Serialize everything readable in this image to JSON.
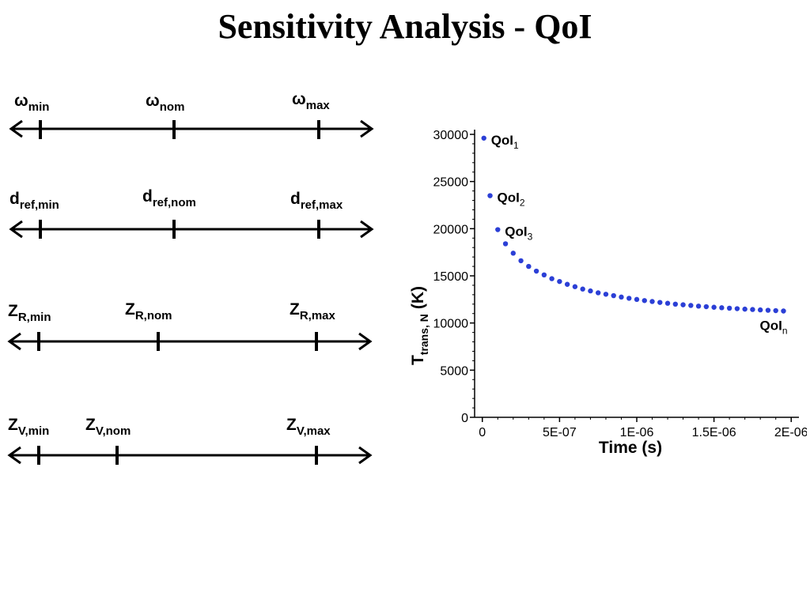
{
  "title": "Sensitivity Analysis - QoI",
  "parameter_lines": [
    {
      "min": {
        "base": "ω",
        "sub": "min"
      },
      "nom": {
        "base": "ω",
        "sub": "nom"
      },
      "max": {
        "base": "ω",
        "sub": "max"
      }
    },
    {
      "min": {
        "base": "d",
        "sub": "ref,min"
      },
      "nom": {
        "base": "d",
        "sub": "ref,nom"
      },
      "max": {
        "base": "d",
        "sub": "ref,max"
      }
    },
    {
      "min": {
        "base": "Z",
        "sub": "R,min"
      },
      "nom": {
        "base": "Z",
        "sub": "R,nom"
      },
      "max": {
        "base": "Z",
        "sub": "R,max"
      }
    },
    {
      "min": {
        "base": "Z",
        "sub": "V,min"
      },
      "nom": {
        "base": "Z",
        "sub": "V,nom"
      },
      "max": {
        "base": "Z",
        "sub": "V,max"
      }
    }
  ],
  "chart_data": {
    "type": "scatter",
    "title": "",
    "xlabel": "Time (s)",
    "ylabel": {
      "base": "T",
      "sub": "trans, N",
      "unit": "(K)"
    },
    "xlim": [
      -5e-08,
      2.05e-06
    ],
    "ylim": [
      0,
      30000
    ],
    "x_ticks": [
      0,
      5e-07,
      1e-06,
      1.5e-06,
      2e-06
    ],
    "x_tick_labels": [
      "0",
      "5E-07",
      "1E-06",
      "1.5E-06",
      "2E-06"
    ],
    "y_ticks": [
      0,
      5000,
      10000,
      15000,
      20000,
      25000,
      30000
    ],
    "y_tick_labels": [
      "0",
      "5000",
      "10000",
      "15000",
      "20000",
      "25000",
      "30000"
    ],
    "point_color": "#2b3fd6",
    "series": [
      {
        "x": [
          1e-08,
          5e-08,
          1e-07,
          1.5e-07,
          2e-07,
          2.5e-07,
          3e-07,
          3.5e-07,
          4e-07,
          4.5e-07,
          5e-07,
          5.5e-07,
          6e-07,
          6.5e-07,
          7e-07,
          7.5e-07,
          8e-07,
          8.5e-07,
          9e-07,
          9.5e-07,
          1e-06,
          1.05e-06,
          1.1e-06,
          1.15e-06,
          1.2e-06,
          1.25e-06,
          1.3e-06,
          1.35e-06,
          1.4e-06,
          1.45e-06,
          1.5e-06,
          1.55e-06,
          1.6e-06,
          1.65e-06,
          1.7e-06,
          1.75e-06,
          1.8e-06,
          1.85e-06,
          1.9e-06,
          1.95e-06
        ],
        "y": [
          29600,
          23500,
          19900,
          18400,
          17400,
          16600,
          16000,
          15500,
          15100,
          14700,
          14400,
          14100,
          13850,
          13600,
          13400,
          13200,
          13050,
          12900,
          12750,
          12620,
          12500,
          12380,
          12280,
          12180,
          12090,
          12000,
          11930,
          11860,
          11790,
          11730,
          11670,
          11620,
          11570,
          11520,
          11470,
          11430,
          11390,
          11350,
          11310,
          11270
        ]
      }
    ],
    "annotations": [
      {
        "base": "QoI",
        "sub": "1",
        "x": 1e-08,
        "y": 29600
      },
      {
        "base": "QoI",
        "sub": "2",
        "x": 5e-08,
        "y": 23500
      },
      {
        "base": "QoI",
        "sub": "3",
        "x": 1e-07,
        "y": 19900
      },
      {
        "base": "QoI",
        "sub": "n",
        "x": 1.95e-06,
        "y": 11270
      }
    ]
  }
}
